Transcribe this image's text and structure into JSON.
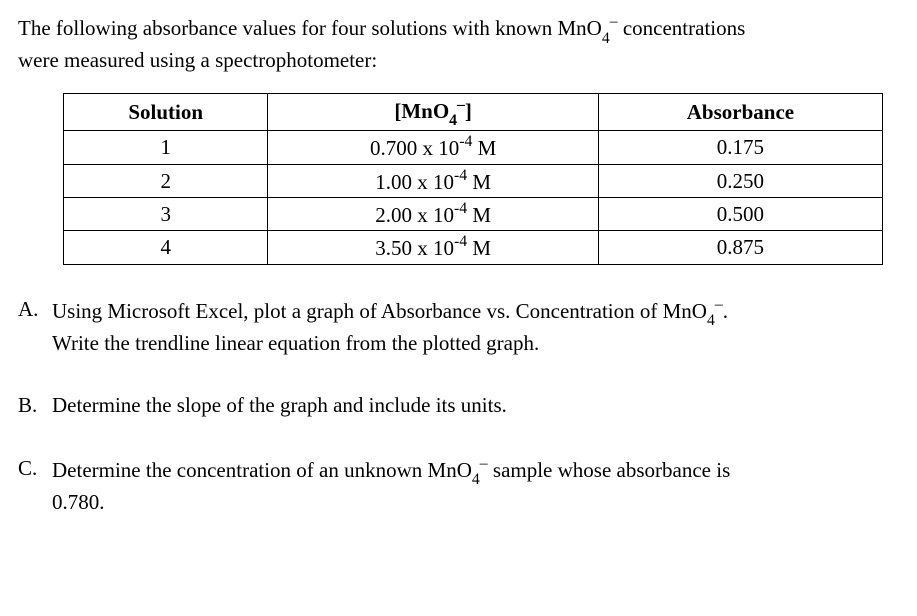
{
  "intro_l1_a": "The following absorbance values for four solutions with known MnO",
  "intro_l1_b": " concentrations",
  "intro_l2": "were measured using a spectrophotometer:",
  "table": {
    "headers": {
      "solution": "Solution",
      "conc_a": "[MnO",
      "conc_b": "]",
      "abs": "Absorbance"
    },
    "rows": [
      {
        "solution": "1",
        "conc_val": "0.700 x 10",
        "conc_exp": "-4",
        "conc_unit": " M",
        "abs": "0.175"
      },
      {
        "solution": "2",
        "conc_val": "1.00 x 10",
        "conc_exp": "-4",
        "conc_unit": " M",
        "abs": "0.250"
      },
      {
        "solution": "3",
        "conc_val": "2.00 x 10",
        "conc_exp": "-4",
        "conc_unit": " M",
        "abs": "0.500"
      },
      {
        "solution": "4",
        "conc_val": "3.50 x 10",
        "conc_exp": "-4",
        "conc_unit": " M",
        "abs": "0.875"
      }
    ]
  },
  "qA": {
    "letter": "A.",
    "l1_a": "Using Microsoft Excel, plot a graph of Absorbance vs. Concentration of MnO",
    "l1_b": ".",
    "l2": "Write the trendline linear equation from the plotted graph."
  },
  "qB": {
    "letter": "B.",
    "text": "Determine the slope of the graph and include its units."
  },
  "qC": {
    "letter": "C.",
    "l1_a": "Determine the concentration of an unknown MnO",
    "l1_b": " sample whose absorbance is",
    "l2": "0.780."
  },
  "chem": {
    "sub4": "4",
    "minus": "−",
    "minus_sup": "–"
  }
}
